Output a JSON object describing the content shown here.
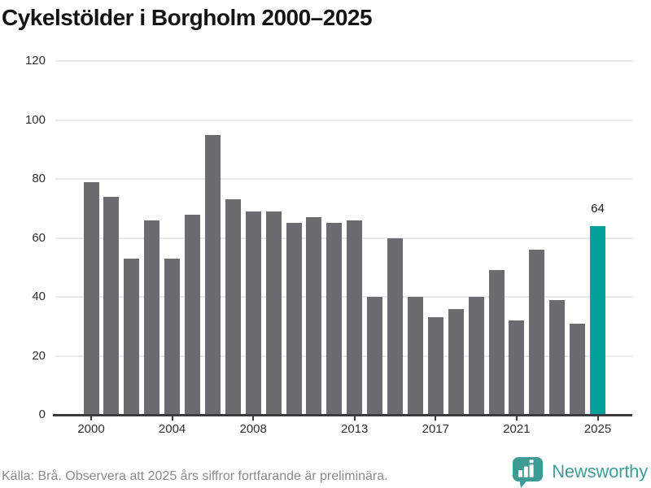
{
  "title": "Cykelstölder i Borgholm 2000–2025",
  "footer": {
    "source_note": "Källa: Brå. Observera att 2025 års siffror fortfarande är preliminära.",
    "brand": "Newsworthy"
  },
  "colors": {
    "background": "#ffffff",
    "title": "#141414",
    "bar_default": "#6c6c70",
    "bar_highlight": "#00a29a",
    "grid": "#eaeaec",
    "axis": "#3b3b3d",
    "tick_label": "#2e2e30",
    "value_label": "#141414",
    "footer_text": "#8a8a8e",
    "brand_teal": "#3f9d96",
    "logo_teal": "#3e9b94"
  },
  "chart_data": {
    "type": "bar",
    "title": "Cykelstölder i Borgholm 2000–2025",
    "xlabel": "",
    "ylabel": "",
    "x": [
      2000,
      2001,
      2002,
      2003,
      2004,
      2005,
      2006,
      2007,
      2008,
      2009,
      2010,
      2011,
      2012,
      2013,
      2014,
      2015,
      2016,
      2017,
      2018,
      2019,
      2020,
      2021,
      2022,
      2023,
      2024,
      2025
    ],
    "values": [
      79,
      74,
      53,
      66,
      53,
      68,
      95,
      73,
      69,
      69,
      65,
      67,
      65,
      66,
      40,
      60,
      40,
      33,
      36,
      40,
      49,
      32,
      56,
      39,
      31,
      64
    ],
    "highlight_year": 2025,
    "bar_label": {
      "year": 2025,
      "text": "64"
    },
    "ylim": [
      0,
      120
    ],
    "y_ticks": [
      0,
      20,
      40,
      60,
      80,
      100,
      120
    ],
    "x_tick_years": [
      2000,
      2004,
      2008,
      2013,
      2017,
      2021,
      2025
    ],
    "x_tick_labels": [
      "2000",
      "2004",
      "2008",
      "2013",
      "2017",
      "2021",
      "2025"
    ],
    "grid": true,
    "legend": false
  }
}
